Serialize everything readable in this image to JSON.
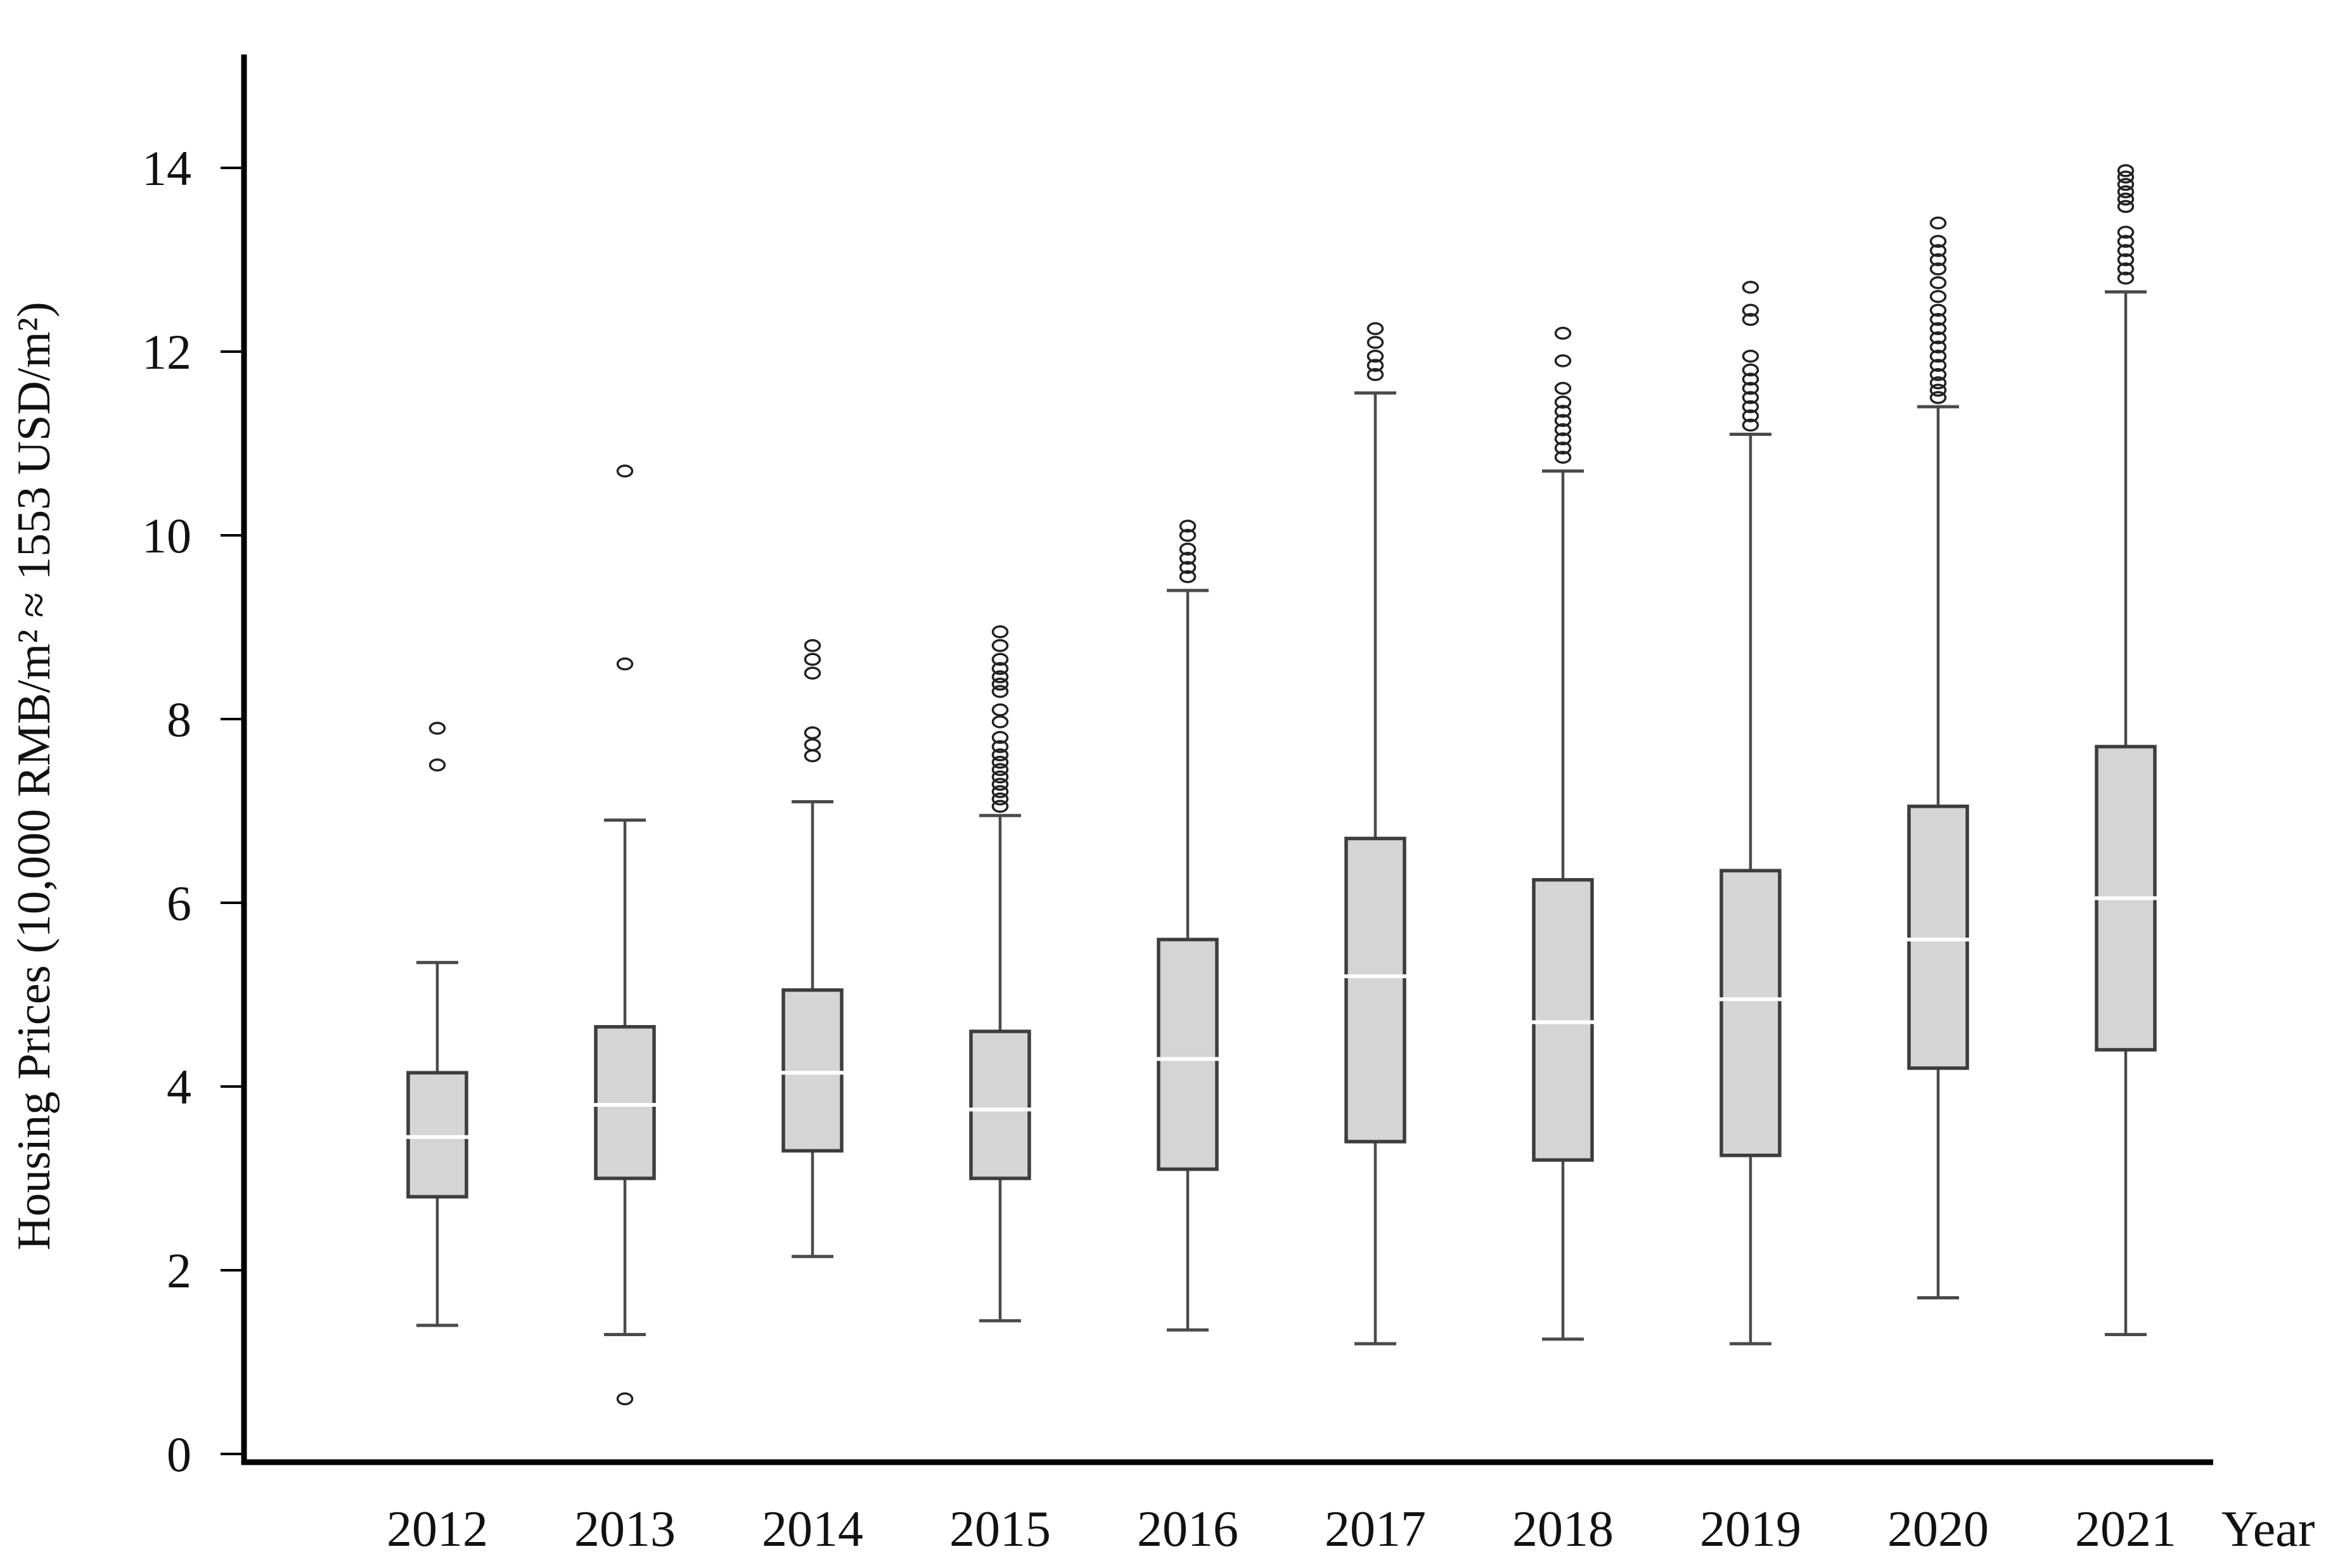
{
  "figure": {
    "background": "#ffffff"
  },
  "chart_data": {
    "type": "boxplot",
    "title": "",
    "xlabel": "Year",
    "ylabel": "Housing Prices (10,000 RMB/m² ≈ 1553 USD/m²)",
    "categories": [
      "2012",
      "2013",
      "2014",
      "2015",
      "2016",
      "2017",
      "2018",
      "2019",
      "2020",
      "2021"
    ],
    "yticks": [
      0,
      2,
      4,
      6,
      8,
      10,
      12,
      14
    ],
    "ylim": [
      0,
      15.2
    ],
    "grid": false,
    "legend": false,
    "series": [
      {
        "year": "2012",
        "whisker_low": 1.4,
        "q1": 2.8,
        "median": 3.45,
        "q3": 4.15,
        "whisker_high": 5.35,
        "outliers": [
          7.5,
          7.9
        ]
      },
      {
        "year": "2013",
        "whisker_low": 1.3,
        "q1": 3.0,
        "median": 3.8,
        "q3": 4.65,
        "whisker_high": 6.9,
        "outliers": [
          0.6,
          8.6,
          10.7
        ]
      },
      {
        "year": "2014",
        "whisker_low": 2.15,
        "q1": 3.3,
        "median": 4.15,
        "q3": 5.05,
        "whisker_high": 7.1,
        "outliers": [
          7.6,
          7.72,
          7.85,
          8.5,
          8.65,
          8.8
        ]
      },
      {
        "year": "2015",
        "whisker_low": 1.45,
        "q1": 3.0,
        "median": 3.75,
        "q3": 4.6,
        "whisker_high": 6.95,
        "outliers": [
          7.05,
          7.13,
          7.21,
          7.29,
          7.37,
          7.45,
          7.53,
          7.61,
          7.7,
          7.8,
          7.97,
          8.1,
          8.3,
          8.38,
          8.46,
          8.55,
          8.65,
          8.8,
          8.95
        ]
      },
      {
        "year": "2016",
        "whisker_low": 1.35,
        "q1": 3.1,
        "median": 4.3,
        "q3": 5.6,
        "whisker_high": 9.4,
        "outliers": [
          9.55,
          9.65,
          9.75,
          9.85,
          10.0,
          10.1
        ]
      },
      {
        "year": "2017",
        "whisker_low": 1.2,
        "q1": 3.4,
        "median": 5.2,
        "q3": 6.7,
        "whisker_high": 11.55,
        "outliers": [
          11.75,
          11.85,
          11.95,
          12.1,
          12.25
        ]
      },
      {
        "year": "2018",
        "whisker_low": 1.25,
        "q1": 3.2,
        "median": 4.7,
        "q3": 6.25,
        "whisker_high": 10.7,
        "outliers": [
          10.85,
          10.95,
          11.05,
          11.15,
          11.25,
          11.35,
          11.45,
          11.6,
          11.9,
          12.2
        ]
      },
      {
        "year": "2019",
        "whisker_low": 1.2,
        "q1": 3.25,
        "median": 4.95,
        "q3": 6.35,
        "whisker_high": 11.1,
        "outliers": [
          11.2,
          11.3,
          11.4,
          11.5,
          11.6,
          11.7,
          11.8,
          11.95,
          12.35,
          12.45,
          12.7
        ]
      },
      {
        "year": "2020",
        "whisker_low": 1.7,
        "q1": 4.2,
        "median": 5.6,
        "q3": 7.05,
        "whisker_high": 11.4,
        "outliers": [
          11.5,
          11.58,
          11.66,
          11.75,
          11.85,
          11.95,
          12.05,
          12.15,
          12.25,
          12.35,
          12.45,
          12.6,
          12.75,
          12.9,
          13.0,
          13.1,
          13.2,
          13.4
        ]
      },
      {
        "year": "2021",
        "whisker_low": 1.3,
        "q1": 4.4,
        "median": 6.05,
        "q3": 7.7,
        "whisker_high": 12.65,
        "outliers": [
          12.8,
          12.9,
          13.0,
          13.1,
          13.2,
          13.3,
          13.58,
          13.66,
          13.74,
          13.82,
          13.9,
          13.97
        ]
      }
    ],
    "colors": {
      "box_fill": "#d5d5d5",
      "box_stroke": "#3d3d3d",
      "median": "#ffffff",
      "whisker": "#4a4a4a",
      "outlier_stroke": "#222222",
      "axis": "#000000",
      "text": "#111111"
    }
  }
}
